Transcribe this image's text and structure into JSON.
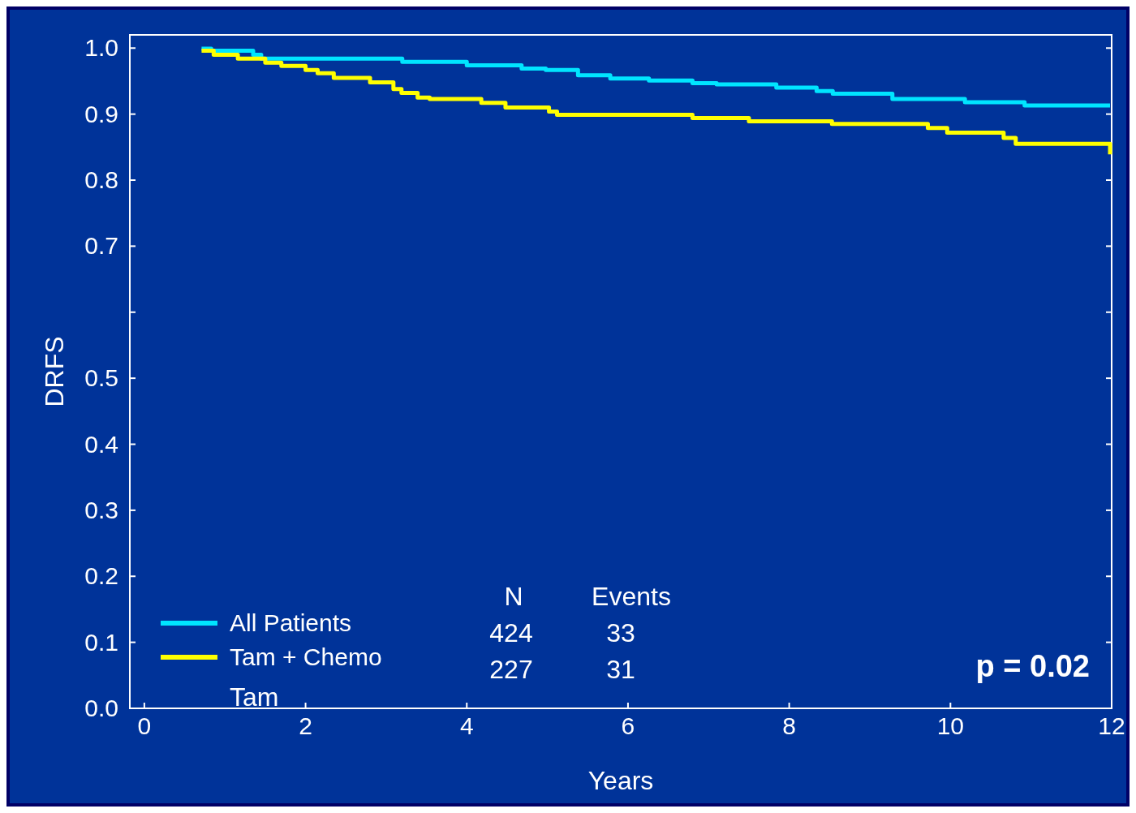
{
  "chart_data": {
    "type": "step",
    "xlabel": "Years",
    "ylabel": "DRFS",
    "xlim": [
      -0.18,
      12
    ],
    "xticks": [
      0,
      2,
      4,
      6,
      8,
      10,
      12
    ],
    "ylim": [
      0,
      1.02
    ],
    "yticks": [
      {
        "value": 0,
        "label": "0.0"
      },
      0.1,
      0.2,
      0.3,
      0.4,
      0.5,
      {
        "value": 0.6,
        "label": null
      },
      0.7,
      0.8,
      0.9,
      {
        "value": 1,
        "label": "1.0"
      }
    ],
    "grid": false,
    "legend": "bottom left",
    "line_style": "solid",
    "series": [
      {
        "name": "All Patients",
        "color": "#00e5ff",
        "x": [
          0.71,
          0.83,
          1.35,
          1.45,
          3.2,
          3.68,
          4.0,
          4.68,
          4.98,
          5.38,
          5.78,
          6.26,
          6.8,
          7.1,
          7.84,
          8.34,
          8.54,
          9.18,
          9.28,
          10.18,
          10.92,
          11.98
        ],
        "values": [
          0.999,
          0.996,
          0.99,
          0.984,
          0.979,
          0.979,
          0.974,
          0.969,
          0.967,
          0.959,
          0.954,
          0.951,
          0.947,
          0.945,
          0.94,
          0.935,
          0.931,
          0.931,
          0.923,
          0.918,
          0.913,
          0.913
        ]
      },
      {
        "name": "Tam + Chemo",
        "color": "#ffff00",
        "x": [
          0.71,
          0.86,
          1.16,
          1.5,
          1.7,
          2.0,
          2.15,
          2.35,
          2.8,
          3.09,
          3.19,
          3.39,
          3.54,
          4.18,
          4.48,
          5.02,
          5.12,
          6.8,
          7.5,
          8.53,
          9.72,
          9.96,
          10.66,
          10.81,
          11.94,
          11.98
        ],
        "values": [
          0.996,
          0.99,
          0.984,
          0.978,
          0.973,
          0.967,
          0.962,
          0.955,
          0.948,
          0.938,
          0.932,
          0.925,
          0.923,
          0.917,
          0.91,
          0.904,
          0.899,
          0.894,
          0.889,
          0.885,
          0.879,
          0.872,
          0.864,
          0.855,
          0.855,
          0.839
        ]
      }
    ],
    "annotations": [
      "Tam",
      "N",
      "Events",
      "424",
      "33",
      "227",
      "31",
      "p = 0.02"
    ]
  }
}
